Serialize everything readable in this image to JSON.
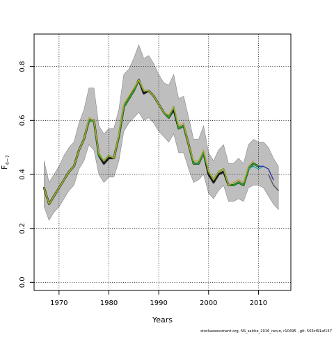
{
  "chart_data": {
    "type": "line",
    "xlabel": "Years",
    "ylabel_main": "F",
    "ylabel_sub": "4−7",
    "xlim": [
      1965,
      2016.5
    ],
    "ylim": [
      -0.03,
      0.92
    ],
    "xticks": [
      1970,
      1980,
      1990,
      2000,
      2010
    ],
    "yticks": [
      0.0,
      0.2,
      0.4,
      0.6,
      0.8
    ],
    "xtick_labels": [
      "1970",
      "1980",
      "1990",
      "2000",
      "2010"
    ],
    "ytick_labels": [
      "0.0",
      "0.2",
      "0.4",
      "0.6",
      "0.8"
    ],
    "grid": true,
    "legend": "none",
    "footer": "stockassessment.org,  NS_saithe_2016_rerun,  r10495 ,  git:  503cf91af157",
    "colors": {
      "band": "#bebebe",
      "band_edge": "#888888",
      "grid": "#000000",
      "series": [
        "#1a1a1a",
        "#2a9a2a",
        "#b8a52e",
        "#2fa89c",
        "#3333aa",
        "#555555"
      ]
    },
    "band": {
      "x": [
        1967,
        1968,
        1969,
        1970,
        1971,
        1972,
        1973,
        1974,
        1975,
        1976,
        1977,
        1978,
        1979,
        1980,
        1981,
        1982,
        1983,
        1984,
        1985,
        1986,
        1987,
        1988,
        1989,
        1990,
        1991,
        1992,
        1993,
        1994,
        1995,
        1996,
        1997,
        1998,
        1999,
        2000,
        2001,
        2002,
        2003,
        2004,
        2005,
        2006,
        2007,
        2008,
        2009,
        2010,
        2011,
        2012,
        2013,
        2014
      ],
      "upper": [
        0.45,
        0.37,
        0.4,
        0.43,
        0.47,
        0.5,
        0.52,
        0.59,
        0.64,
        0.72,
        0.72,
        0.58,
        0.55,
        0.57,
        0.57,
        0.64,
        0.77,
        0.79,
        0.83,
        0.88,
        0.83,
        0.84,
        0.81,
        0.77,
        0.74,
        0.73,
        0.77,
        0.68,
        0.69,
        0.61,
        0.53,
        0.53,
        0.58,
        0.48,
        0.45,
        0.49,
        0.51,
        0.44,
        0.44,
        0.46,
        0.44,
        0.51,
        0.53,
        0.52,
        0.52,
        0.5,
        0.46,
        0.43
      ],
      "lower": [
        0.28,
        0.23,
        0.26,
        0.28,
        0.31,
        0.34,
        0.36,
        0.42,
        0.45,
        0.51,
        0.49,
        0.4,
        0.37,
        0.39,
        0.39,
        0.45,
        0.56,
        0.59,
        0.61,
        0.63,
        0.6,
        0.61,
        0.59,
        0.56,
        0.54,
        0.52,
        0.55,
        0.48,
        0.48,
        0.42,
        0.37,
        0.38,
        0.4,
        0.33,
        0.31,
        0.34,
        0.36,
        0.3,
        0.3,
        0.31,
        0.3,
        0.35,
        0.36,
        0.36,
        0.35,
        0.32,
        0.29,
        0.27
      ]
    },
    "series": [
      {
        "x": [
          1967,
          1968,
          1969,
          1970,
          1971,
          1972,
          1973,
          1974,
          1975,
          1976,
          1977,
          1978,
          1979,
          1980,
          1981,
          1982,
          1983,
          1984,
          1985,
          1986,
          1987,
          1988,
          1989,
          1990,
          1991,
          1992,
          1993,
          1994,
          1995,
          1996,
          1997,
          1998,
          1999,
          2000,
          2001,
          2002,
          2003,
          2004,
          2005,
          2006,
          2007,
          2008,
          2009,
          2010
        ],
        "values": [
          0.35,
          0.29,
          0.32,
          0.35,
          0.38,
          0.41,
          0.43,
          0.49,
          0.53,
          0.6,
          0.6,
          0.47,
          0.44,
          0.46,
          0.46,
          0.54,
          0.65,
          0.68,
          0.71,
          0.75,
          0.7,
          0.71,
          0.69,
          0.66,
          0.63,
          0.61,
          0.64,
          0.57,
          0.58,
          0.51,
          0.44,
          0.44,
          0.48,
          0.4,
          0.37,
          0.4,
          0.41,
          0.36,
          0.36,
          0.37,
          0.36,
          0.42,
          0.44,
          0.43
        ]
      },
      {
        "x": [
          1967,
          1968,
          1969,
          1970,
          1971,
          1972,
          1973,
          1974,
          1975,
          1976,
          1977,
          1978,
          1979,
          1980,
          1981,
          1982,
          1983,
          1984,
          1985,
          1986,
          1987,
          1988,
          1989,
          1990,
          1991,
          1992,
          1993,
          1994,
          1995,
          1996,
          1997,
          1998,
          1999,
          2000,
          2001,
          2002,
          2003,
          2004,
          2005,
          2006,
          2007,
          2008,
          2009,
          2010
        ],
        "values": [
          0.35,
          0.29,
          0.32,
          0.35,
          0.38,
          0.41,
          0.43,
          0.49,
          0.53,
          0.6,
          0.6,
          0.47,
          0.45,
          0.47,
          0.46,
          0.54,
          0.65,
          0.68,
          0.71,
          0.75,
          0.71,
          0.71,
          0.69,
          0.66,
          0.63,
          0.61,
          0.65,
          0.57,
          0.58,
          0.51,
          0.44,
          0.44,
          0.48,
          0.41,
          0.38,
          0.41,
          0.42,
          0.36,
          0.36,
          0.37,
          0.36,
          0.42,
          0.44,
          0.43
        ]
      },
      {
        "x": [
          1967,
          1968,
          1969,
          1970,
          1971,
          1972,
          1973,
          1974,
          1975,
          1976,
          1977,
          1978,
          1979,
          1980,
          1981,
          1982,
          1983,
          1984,
          1985,
          1986,
          1987,
          1988,
          1989,
          1990,
          1991,
          1992,
          1993,
          1994,
          1995,
          1996,
          1997,
          1998,
          1999,
          2000,
          2001,
          2002,
          2003,
          2004,
          2005,
          2006,
          2007,
          2008,
          2009
        ],
        "values": [
          0.35,
          0.29,
          0.32,
          0.35,
          0.38,
          0.41,
          0.43,
          0.49,
          0.53,
          0.61,
          0.6,
          0.48,
          0.45,
          0.47,
          0.46,
          0.55,
          0.66,
          0.69,
          0.72,
          0.75,
          0.71,
          0.71,
          0.69,
          0.66,
          0.63,
          0.62,
          0.65,
          0.58,
          0.59,
          0.51,
          0.45,
          0.45,
          0.49,
          0.41,
          0.38,
          0.41,
          0.42,
          0.36,
          0.37,
          0.38,
          0.37,
          0.43,
          0.45
        ]
      },
      {
        "x": [
          2008,
          2009,
          2010,
          2011
        ],
        "values": [
          0.42,
          0.43,
          0.42,
          0.43
        ]
      },
      {
        "x": [
          2010,
          2011,
          2012,
          2013
        ],
        "values": [
          0.43,
          0.43,
          0.42,
          0.38
        ]
      },
      {
        "x": [
          2012,
          2013,
          2014
        ],
        "values": [
          0.4,
          0.36,
          0.34
        ]
      }
    ]
  }
}
